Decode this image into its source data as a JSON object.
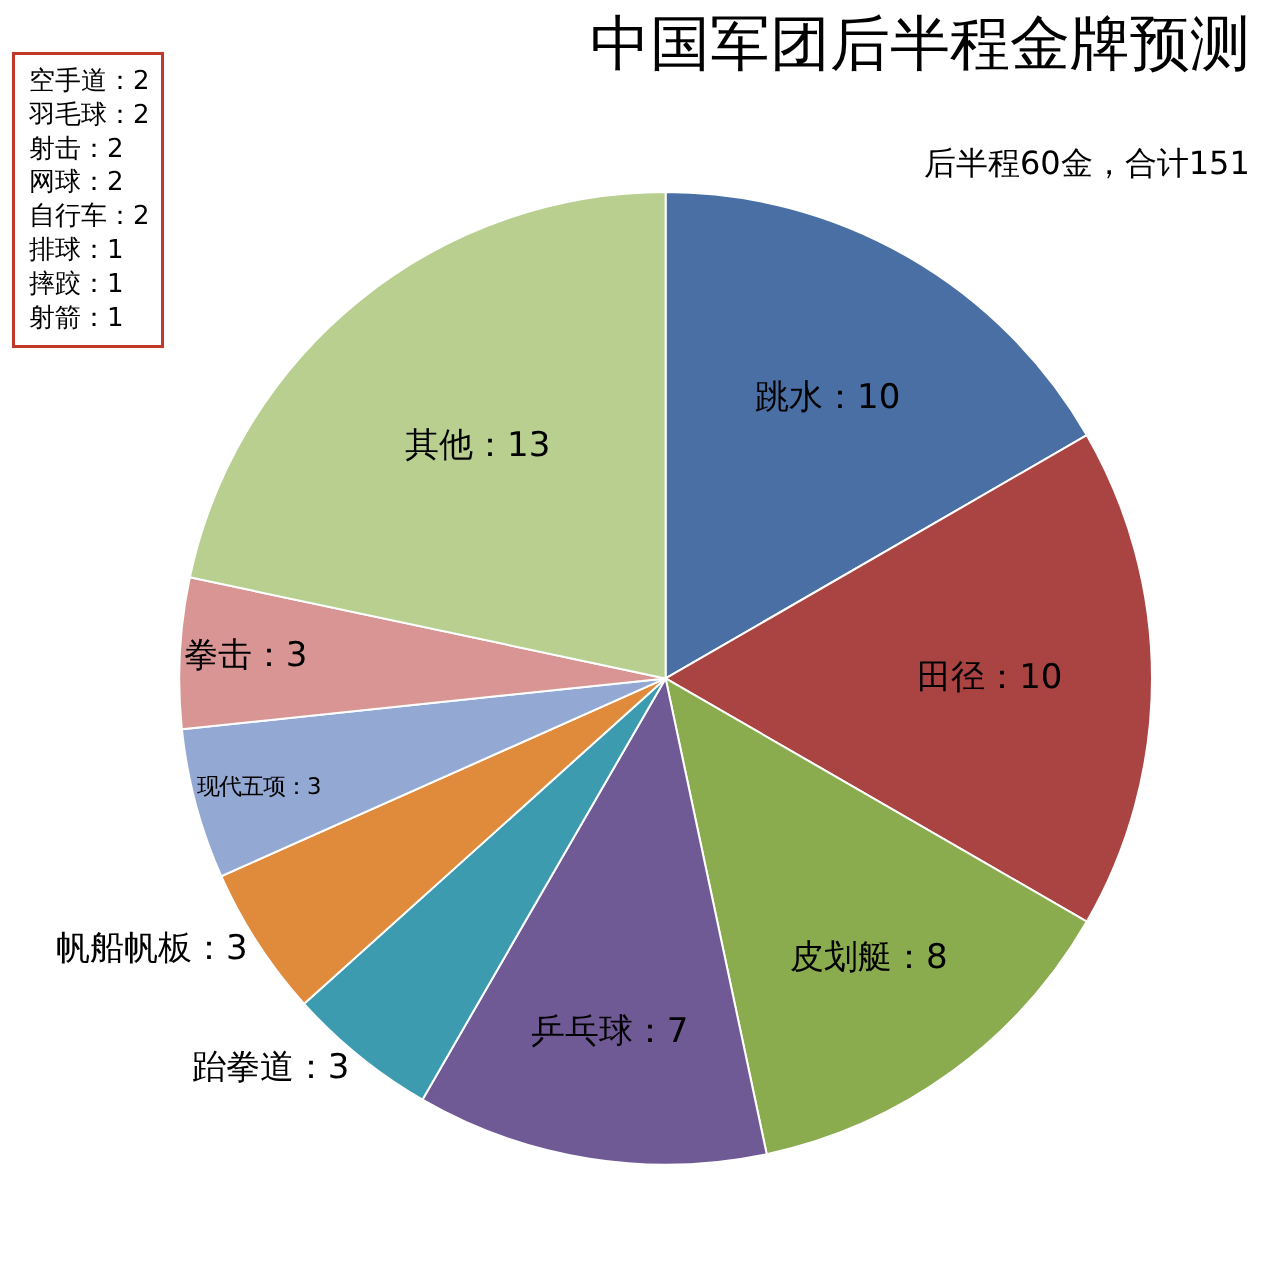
{
  "chart_data": {
    "type": "pie",
    "title": "中国军团后半程金牌预测",
    "subtitle": "后半程60金，合计151",
    "categories": [
      "跳水",
      "田径",
      "皮划艇",
      "乒乓球",
      "跆拳道",
      "帆船帆板",
      "现代五项",
      "拳击",
      "其他"
    ],
    "values": [
      10,
      10,
      8,
      7,
      3,
      3,
      3,
      3,
      13
    ],
    "value_labels": [
      "：10",
      "：10",
      "：8",
      "：7",
      "：3",
      "：3",
      "：3",
      "：3",
      "：13"
    ],
    "colors": [
      "#4a6fa5",
      "#a94442",
      "#8aab4e",
      "#6f5a96",
      "#3d9bb0",
      "#e08a3c",
      "#93a9d4",
      "#d99594",
      "#b8cf8f"
    ],
    "annotations": [
      "空手道：2\n羽毛球：2\n射击：2\n网球：2\n自行车：2\n排球：1\n摔跤：1\n射箭：1"
    ],
    "legend": false
  }
}
